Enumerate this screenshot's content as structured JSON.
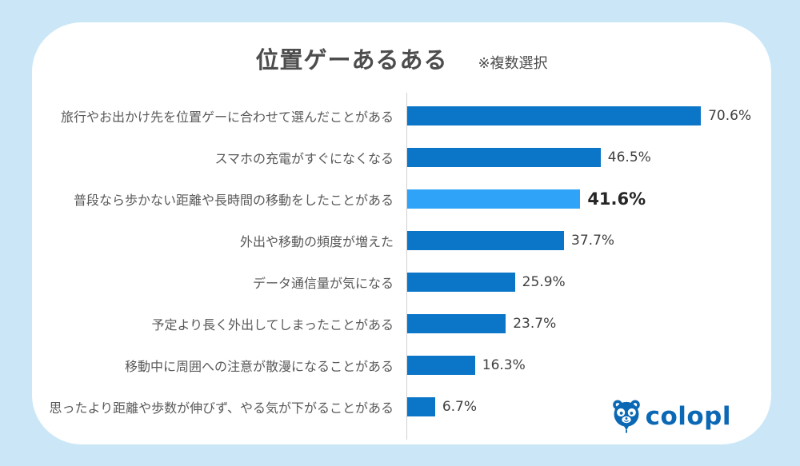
{
  "background_color": "#cbe7f7",
  "card_color": "#ffffff",
  "header": {
    "title": "位置ゲーあるある",
    "note": "※複数選択"
  },
  "chart_data": {
    "type": "bar",
    "orientation": "horizontal",
    "title": "位置ゲーあるある",
    "subtitle": "※複数選択",
    "categories": [
      "旅行やお出かけ先を位置ゲーに合わせて選んだことがある",
      "スマホの充電がすぐになくなる",
      "普段なら歩かない距離や長時間の移動をしたことがある",
      "外出や移動の頻度が増えた",
      "データ通信量が気になる",
      "予定より長く外出してしまったことがある",
      "移動中に周囲への注意が散漫になることがある",
      "思ったより距離や歩数が伸びず、やる気が下がることがある"
    ],
    "values": [
      70.6,
      46.5,
      41.6,
      37.7,
      25.9,
      23.7,
      16.3,
      6.7
    ],
    "value_labels": [
      "70.6%",
      "46.5%",
      "41.6%",
      "37.7%",
      "25.9%",
      "23.7%",
      "16.3%",
      "6.7%"
    ],
    "highlighted_index": 2,
    "bar_color": "#0b76c8",
    "highlight_color": "#2fa3f7",
    "xlabel": "",
    "ylabel": "",
    "xlim": [
      0,
      100
    ],
    "grid": false,
    "legend": false
  },
  "logo": {
    "text": "colopl",
    "color": "#0a68b4",
    "icon": "colopl-balloon-bear-icon"
  }
}
